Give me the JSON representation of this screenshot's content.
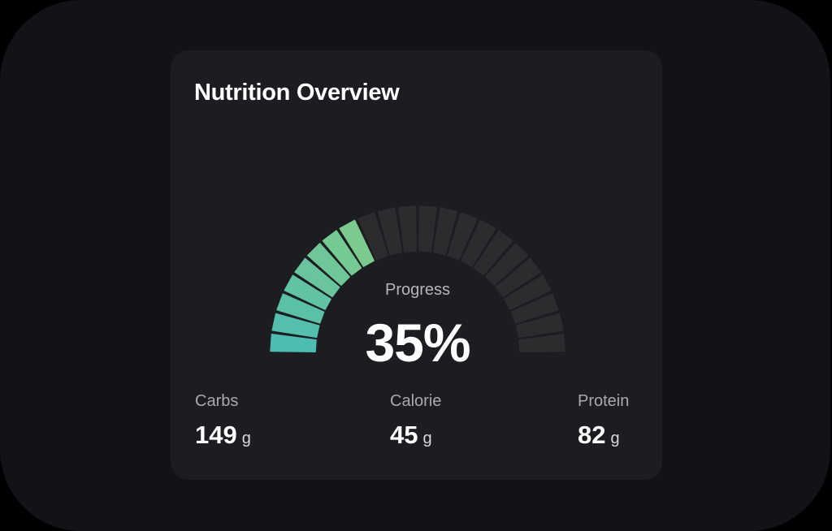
{
  "card": {
    "title": "Nutrition Overview"
  },
  "gauge": {
    "label": "Progress",
    "value_text": "35%",
    "percent": 35,
    "total_segments": 22,
    "filled_segments": 8,
    "colors": {
      "fill_start": "#4dbdb2",
      "fill_end": "#7ccb8e",
      "track": "#2c2c2e"
    }
  },
  "stats": [
    {
      "label": "Carbs",
      "value": "149",
      "unit": "g"
    },
    {
      "label": "Calorie",
      "value": "45",
      "unit": "g"
    },
    {
      "label": "Protein",
      "value": "82",
      "unit": "g"
    }
  ],
  "chart_data": {
    "type": "gauge",
    "title": "Nutrition Overview",
    "label": "Progress",
    "value": 35,
    "unit": "%",
    "segments": 22,
    "filled": 8
  }
}
